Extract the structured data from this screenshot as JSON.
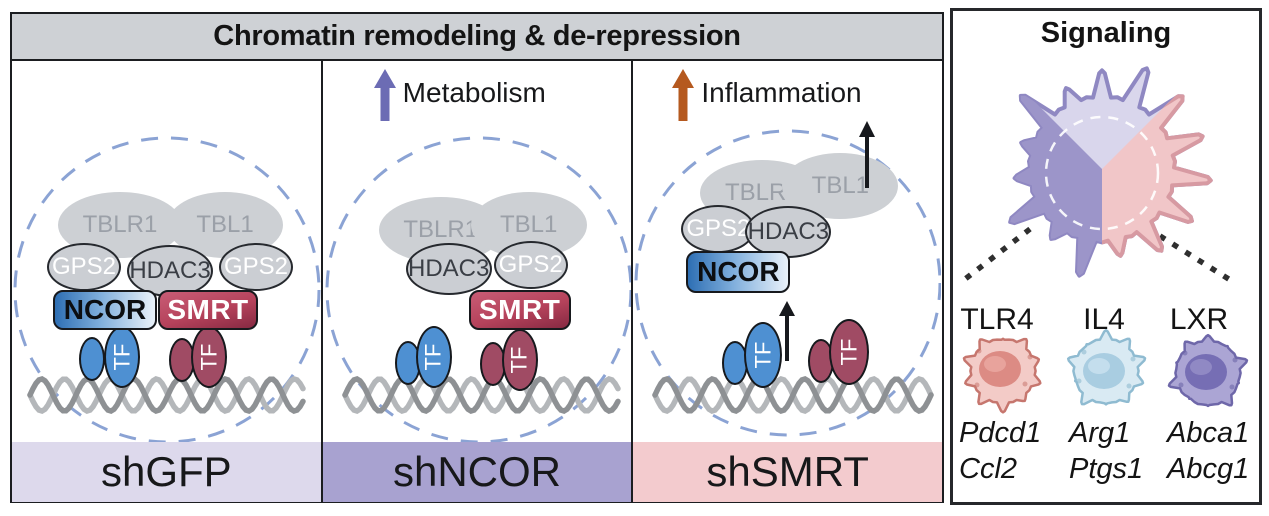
{
  "header": {
    "chromatin": "Chromatin remodeling & de-repression"
  },
  "p1": {
    "label": "shGFP",
    "tblr1": "TBLR1",
    "tbl1": "TBL1",
    "gps2_left": "GPS2",
    "hdac3": "HDAC3",
    "gps2_right": "GPS2",
    "ncor": "NCOR",
    "smrt": "SMRT",
    "tf_blue": "TF",
    "tf_red": "TF"
  },
  "p2": {
    "label": "shNCOR",
    "annotation": "Metabolism",
    "tblr1": "TBLR1",
    "tbl1": "TBL1",
    "hdac3": "HDAC3",
    "gps2": "GPS2",
    "smrt": "SMRT",
    "tf_blue": "TF",
    "tf_red": "TF"
  },
  "p3": {
    "label": "shSMRT",
    "annotation": "Inflammation",
    "tblr1": "TBLR1",
    "tbl1": "TBL1",
    "gps2": "GPS2",
    "hdac3": "HDAC3",
    "ncor": "NCOR",
    "tf_blue": "TF",
    "tf_red": "TF"
  },
  "signaling": {
    "title": "Signaling",
    "receptors": [
      "TLR4",
      "IL4",
      "LXR"
    ],
    "genes": [
      [
        "Pdcd1",
        "Ccl2"
      ],
      [
        "Arg1",
        "Ptgs1"
      ],
      [
        "Abca1",
        "Abcg1"
      ]
    ]
  },
  "colors": {
    "header_bg": "#CED1D5",
    "metabolism_arrow": "#6C6CB4",
    "inflammation_arrow": "#B5591F",
    "ncor_blue": "#2E6FB4",
    "smrt_crimson": "#B5425B",
    "tf_blue": "#4E90D2",
    "tf_maroon": "#A04B64",
    "nucleus_dash": "#8BA3D4",
    "band_shGFP": "#DDD9EC",
    "band_shNCOR": "#A8A2D0",
    "band_shSMRT": "#F3CBCE",
    "macrophage_top": "#D9D6EC",
    "macrophage_left": "#9C95C9",
    "macrophage_right": "#F1C6C8",
    "cell_tlr4": "#F3CBC7",
    "cell_il4": "#D9EAF3",
    "cell_lxr": "#ABA5D4"
  }
}
